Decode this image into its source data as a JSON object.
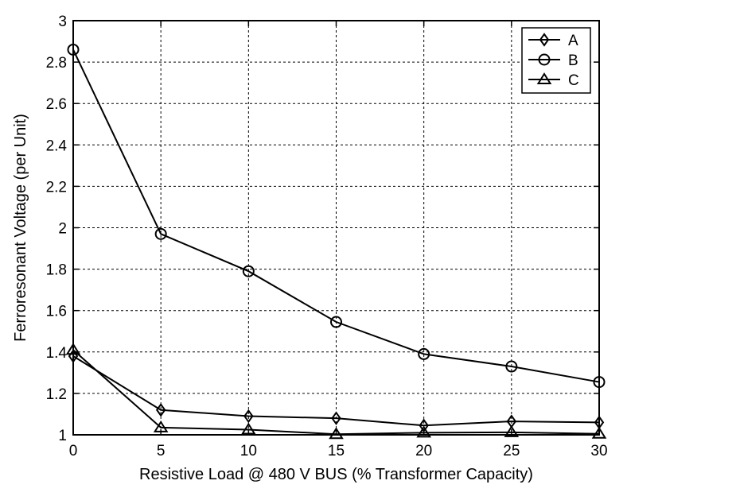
{
  "chart_data": {
    "type": "line",
    "title": "",
    "xlabel": "Resistive Load @ 480 V BUS (% Transformer Capacity)",
    "ylabel": "Ferroresonant Voltage (per Unit)",
    "x": [
      0,
      5,
      10,
      15,
      20,
      25,
      30
    ],
    "xticks": [
      "0",
      "5",
      "10",
      "15",
      "20",
      "25",
      "30"
    ],
    "yticks": [
      "1",
      "1.2",
      "1.4",
      "1.6",
      "1.8",
      "2",
      "2.2",
      "2.4",
      "2.6",
      "2.8",
      "3"
    ],
    "xlim": [
      0,
      30
    ],
    "ylim": [
      1,
      3
    ],
    "grid": true,
    "legend_position": "top-right",
    "series": [
      {
        "name": "A",
        "marker": "diamond",
        "values": [
          1.38,
          1.12,
          1.09,
          1.08,
          1.045,
          1.065,
          1.06
        ]
      },
      {
        "name": "B",
        "marker": "circle",
        "values": [
          2.86,
          1.97,
          1.79,
          1.545,
          1.39,
          1.33,
          1.255
        ]
      },
      {
        "name": "C",
        "marker": "triangle",
        "values": [
          1.41,
          1.035,
          1.025,
          1.003,
          1.01,
          1.012,
          1.005
        ]
      }
    ]
  }
}
